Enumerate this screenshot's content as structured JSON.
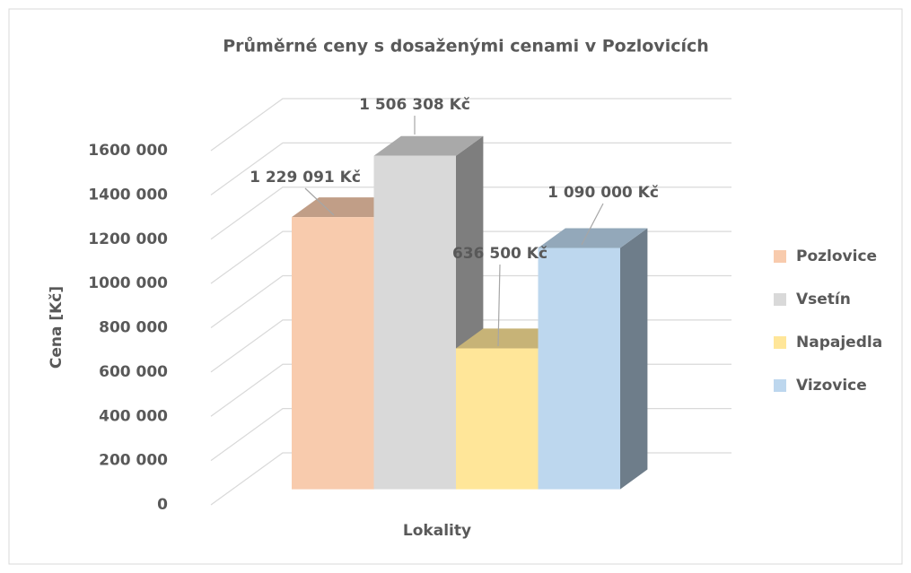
{
  "chart_data": {
    "type": "bar3d",
    "title": "Průměrné ceny s dosaženými cenami v Pozlovicích",
    "ylabel": "Cena [Kč]",
    "xlabel": "Lokality",
    "categories": [
      null
    ],
    "series": [
      {
        "name": "Pozlovice",
        "color": "#f8cbad",
        "values": [
          1229091
        ],
        "value_labels": [
          "1 229 091 Kč"
        ]
      },
      {
        "name": "Vsetín",
        "color": "#d9d9d9",
        "values": [
          1506308
        ],
        "value_labels": [
          "1 506 308 Kč"
        ]
      },
      {
        "name": "Napajedla",
        "color": "#ffe699",
        "values": [
          636500
        ],
        "value_labels": [
          "636 500 Kč"
        ]
      },
      {
        "name": "Vizovice",
        "color": "#bdd7ee",
        "values": [
          1090000
        ],
        "value_labels": [
          "1 090 000 Kč"
        ]
      }
    ],
    "ylim": [
      0,
      1600000
    ],
    "yticks": [
      0,
      {
        "value": 200000,
        "label": "200 000"
      },
      {
        "value": 400000,
        "label": "400 000"
      },
      {
        "value": 600000,
        "label": "600 000"
      },
      {
        "value": 800000,
        "label": "800 000"
      },
      {
        "value": 1000000,
        "label": "1000 000"
      },
      {
        "value": 1200000,
        "label": "1200 000"
      },
      {
        "value": 1400000,
        "label": "1400 000"
      },
      {
        "value": 1600000,
        "label": "1600 000"
      }
    ],
    "grid": true,
    "legend": "right"
  }
}
